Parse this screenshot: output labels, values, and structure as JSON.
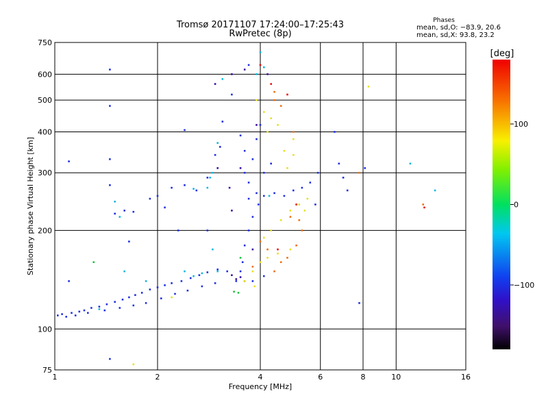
{
  "title_line1": "Tromsø 20171107 17:24:00–17:25:43",
  "title_line2": "RwPretec (8p)",
  "stats": {
    "header": "Phases",
    "line_o": "mean, sd,O: −83.9, 20.6",
    "line_x": "mean, sd,X:  93.8, 23.2"
  },
  "chart_data": {
    "type": "scatter",
    "xlabel": "Frequency [MHz]",
    "ylabel": "Stationary phase Virtual Height [km]",
    "xscale": "log",
    "yscale": "log",
    "xlim": [
      1,
      16
    ],
    "ylim": [
      75,
      750
    ],
    "xticks": [
      1,
      2,
      4,
      6,
      8,
      10,
      16
    ],
    "xtick_labels": [
      "1",
      "2",
      "4",
      "6",
      "8",
      "10",
      "16"
    ],
    "yticks": [
      75,
      100,
      200,
      300,
      400,
      500,
      600,
      750
    ],
    "ytick_labels": [
      "75",
      "100",
      "200",
      "300",
      "400",
      "500",
      "600",
      "750"
    ],
    "colorbar": {
      "label": "[deg]",
      "range": [
        -180,
        180
      ],
      "ticks": [
        100,
        0,
        -100
      ],
      "tick_labels": [
        "100",
        "0",
        "−100"
      ],
      "colormap": "rainbow (black-purple-blue-cyan-green-yellow-red)"
    },
    "grid": true,
    "series": [
      {
        "phase_deg": -110,
        "color": "#2030e0",
        "points": [
          [
            1.02,
            110
          ],
          [
            1.05,
            111
          ],
          [
            1.08,
            109
          ],
          [
            1.12,
            112
          ],
          [
            1.18,
            113
          ],
          [
            1.22,
            114
          ],
          [
            1.28,
            116
          ],
          [
            1.35,
            117
          ],
          [
            1.42,
            119
          ],
          [
            1.5,
            121
          ],
          [
            1.58,
            123
          ],
          [
            1.65,
            125
          ],
          [
            1.72,
            127
          ],
          [
            1.8,
            129
          ],
          [
            1.9,
            132
          ],
          [
            2.0,
            134
          ],
          [
            2.1,
            136
          ],
          [
            2.2,
            138
          ],
          [
            2.35,
            140
          ],
          [
            2.5,
            143
          ],
          [
            2.65,
            146
          ],
          [
            2.8,
            149
          ],
          [
            3.0,
            152
          ],
          [
            3.2,
            150
          ],
          [
            1.15,
            110
          ],
          [
            1.25,
            112
          ],
          [
            1.4,
            114
          ],
          [
            1.55,
            116
          ],
          [
            1.7,
            118
          ],
          [
            1.85,
            120
          ],
          [
            2.05,
            124
          ],
          [
            2.25,
            128
          ],
          [
            2.45,
            131
          ],
          [
            2.7,
            135
          ],
          [
            2.95,
            138
          ],
          [
            1.6,
            230
          ],
          [
            1.7,
            228
          ],
          [
            1.5,
            225
          ],
          [
            1.9,
            250
          ],
          [
            2.0,
            255
          ],
          [
            2.2,
            270
          ],
          [
            2.4,
            275
          ],
          [
            2.6,
            265
          ],
          [
            2.8,
            290
          ],
          [
            2.95,
            340
          ],
          [
            3.05,
            360
          ],
          [
            3.1,
            430
          ],
          [
            3.3,
            520
          ],
          [
            3.5,
            390
          ],
          [
            3.6,
            350
          ],
          [
            3.6,
            300
          ],
          [
            3.7,
            280
          ],
          [
            3.8,
            330
          ],
          [
            3.9,
            380
          ],
          [
            4.0,
            420
          ],
          [
            3.7,
            250
          ],
          [
            3.9,
            260
          ],
          [
            4.1,
            255
          ],
          [
            4.4,
            260
          ],
          [
            4.7,
            255
          ],
          [
            5.0,
            265
          ],
          [
            5.3,
            270
          ],
          [
            5.6,
            280
          ],
          [
            5.9,
            300
          ],
          [
            5.8,
            240
          ],
          [
            4.3,
            320
          ],
          [
            4.1,
            300
          ],
          [
            3.95,
            240
          ],
          [
            3.8,
            220
          ],
          [
            3.7,
            200
          ],
          [
            3.6,
            180
          ],
          [
            3.55,
            160
          ],
          [
            3.5,
            150
          ],
          [
            3.8,
            140
          ],
          [
            4.1,
            145
          ],
          [
            3.4,
            140
          ],
          [
            1.45,
            620
          ],
          [
            1.45,
            330
          ],
          [
            1.45,
            480
          ],
          [
            1.45,
            275
          ],
          [
            2.4,
            405
          ],
          [
            6.6,
            400
          ],
          [
            6.8,
            320
          ],
          [
            7.0,
            290
          ],
          [
            7.2,
            265
          ],
          [
            8.1,
            310
          ],
          [
            7.8,
            120
          ],
          [
            1.45,
            81
          ],
          [
            1.65,
            185
          ],
          [
            1.1,
            325
          ],
          [
            1.1,
            140
          ],
          [
            2.8,
            200
          ],
          [
            3.7,
            640
          ],
          [
            2.1,
            235
          ],
          [
            2.3,
            200
          ]
        ]
      },
      {
        "phase_deg": -150,
        "color": "#3a10a0",
        "points": [
          [
            3.3,
            146
          ],
          [
            3.4,
            142
          ],
          [
            3.5,
            144
          ],
          [
            3.6,
            140
          ],
          [
            3.3,
            600
          ],
          [
            3.6,
            620
          ],
          [
            4.2,
            600
          ],
          [
            3.9,
            420
          ],
          [
            3.5,
            310
          ],
          [
            3.25,
            270
          ],
          [
            3.0,
            310
          ],
          [
            2.95,
            560
          ],
          [
            3.3,
            230
          ],
          [
            3.8,
            175
          ]
        ]
      },
      {
        "phase_deg": -60,
        "color": "#10b8e0",
        "points": [
          [
            3.0,
            150
          ],
          [
            2.7,
            148
          ],
          [
            2.55,
            145
          ],
          [
            2.4,
            150
          ],
          [
            2.9,
            175
          ],
          [
            2.85,
            290
          ],
          [
            2.9,
            300
          ],
          [
            3.0,
            370
          ],
          [
            3.1,
            580
          ],
          [
            2.8,
            270
          ],
          [
            2.55,
            268
          ],
          [
            1.6,
            150
          ],
          [
            1.85,
            140
          ],
          [
            1.35,
            115
          ],
          [
            4.1,
            630
          ],
          [
            4.0,
            700
          ],
          [
            4.25,
            255
          ],
          [
            11.0,
            320
          ],
          [
            13.0,
            265
          ],
          [
            1.5,
            245
          ],
          [
            1.55,
            220
          ],
          [
            3.9,
            600
          ]
        ]
      },
      {
        "phase_deg": -10,
        "color": "#20c040",
        "points": [
          [
            3.35,
            130
          ],
          [
            3.45,
            129
          ],
          [
            1.3,
            160
          ],
          [
            3.5,
            165
          ]
        ]
      },
      {
        "phase_deg": 100,
        "color": "#e8e020",
        "points": [
          [
            3.6,
            140
          ],
          [
            3.8,
            150
          ],
          [
            4.0,
            160
          ],
          [
            4.2,
            165
          ],
          [
            4.5,
            170
          ],
          [
            4.9,
            175
          ],
          [
            4.1,
            190
          ],
          [
            4.3,
            200
          ],
          [
            4.6,
            215
          ],
          [
            4.9,
            230
          ],
          [
            5.2,
            240
          ],
          [
            5.5,
            250
          ],
          [
            4.8,
            310
          ],
          [
            5.0,
            340
          ],
          [
            5.0,
            380
          ],
          [
            4.7,
            350
          ],
          [
            4.1,
            460
          ],
          [
            3.9,
            500
          ],
          [
            4.2,
            400
          ],
          [
            4.5,
            420
          ],
          [
            4.3,
            440
          ],
          [
            5.4,
            230
          ],
          [
            3.85,
            135
          ],
          [
            2.2,
            125
          ],
          [
            1.7,
            78
          ],
          [
            8.3,
            550
          ]
        ]
      },
      {
        "phase_deg": 140,
        "color": "#f07010",
        "points": [
          [
            4.4,
            150
          ],
          [
            4.6,
            160
          ],
          [
            4.8,
            165
          ],
          [
            5.1,
            180
          ],
          [
            5.3,
            200
          ],
          [
            4.2,
            175
          ],
          [
            4.0,
            185
          ],
          [
            5.0,
            400
          ],
          [
            4.6,
            480
          ],
          [
            4.4,
            500
          ],
          [
            5.2,
            215
          ],
          [
            4.9,
            220
          ],
          [
            4.4,
            530
          ],
          [
            3.8,
            155
          ],
          [
            7.8,
            300
          ],
          [
            12.0,
            240
          ]
        ]
      },
      {
        "phase_deg": 170,
        "color": "#e81010",
        "points": [
          [
            4.8,
            520
          ],
          [
            4.3,
            560
          ],
          [
            5.1,
            240
          ],
          [
            4.5,
            175
          ],
          [
            4.0,
            640
          ],
          [
            12.1,
            235
          ]
        ]
      }
    ]
  }
}
